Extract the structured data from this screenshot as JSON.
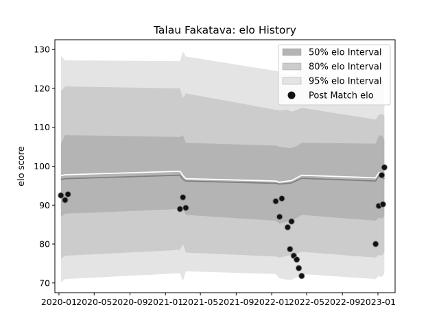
{
  "chart_data": {
    "type": "line",
    "title": "Talau Fakatava: elo History",
    "xlabel": "",
    "ylabel": "elo score",
    "xlim": [
      "2019-12-18",
      "2023-03-01"
    ],
    "ylim": [
      67.5,
      132.5
    ],
    "y_ticks": [
      70,
      80,
      90,
      100,
      110,
      120,
      130
    ],
    "x_ticks": [
      "2020-01",
      "2020-05",
      "2020-09",
      "2021-01",
      "2021-05",
      "2021-09",
      "2022-01",
      "2022-05",
      "2022-09",
      "2023-01"
    ],
    "grid": false,
    "legend_position": "top-right",
    "band_dates": [
      "2020-01-08",
      "2020-01-22",
      "2021-02-20",
      "2021-03-02",
      "2021-03-12",
      "2022-01-15",
      "2022-01-28",
      "2022-02-25",
      "2022-03-10",
      "2022-03-28",
      "2022-04-14",
      "2022-12-24",
      "2023-01-04",
      "2023-01-14",
      "2023-01-23"
    ],
    "median": [
      96.6,
      96.8,
      97.7,
      96.6,
      96.2,
      95.6,
      95.4,
      95.6,
      95.7,
      96.3,
      96.9,
      96.2,
      97.5,
      97.5,
      96.7
    ],
    "mean": [
      97.6,
      97.8,
      98.7,
      97.6,
      96.8,
      96.2,
      95.9,
      96.2,
      96.3,
      97.0,
      97.7,
      97.0,
      98.3,
      98.4,
      97.5
    ],
    "series": [
      {
        "name": "95% elo Interval",
        "color": "#e4e4e4",
        "upper": [
          128.3,
          127.2,
          127.0,
          129.5,
          128.2,
          124.5,
          124.2,
          123.5,
          123.2,
          124.0,
          125.0,
          120.5,
          121.5,
          122.0,
          121.5
        ],
        "lower": [
          70.2,
          71.0,
          72.5,
          70.5,
          73.0,
          72.3,
          71.2,
          70.8,
          70.8,
          71.5,
          72.3,
          71.0,
          71.8,
          71.5,
          72.5
        ]
      },
      {
        "name": "80% elo Interval",
        "color": "#cccccc",
        "upper": [
          119.3,
          120.5,
          120.0,
          117.5,
          118.7,
          114.5,
          114.3,
          114.5,
          114.0,
          114.5,
          115.0,
          112.0,
          113.2,
          113.5,
          113.0
        ],
        "lower": [
          76.2,
          77.0,
          78.5,
          80.0,
          77.8,
          76.8,
          76.5,
          77.0,
          77.2,
          77.5,
          78.0,
          76.5,
          77.2,
          77.0,
          77.8
        ]
      },
      {
        "name": "50% elo Interval",
        "color": "#b4b4b4",
        "upper": [
          105.8,
          108.0,
          107.5,
          108.0,
          106.0,
          105.3,
          105.0,
          104.7,
          104.7,
          105.2,
          106.0,
          105.8,
          107.8,
          108.0,
          106.8
        ],
        "lower": [
          87.0,
          87.8,
          89.0,
          89.0,
          87.5,
          86.0,
          85.2,
          85.8,
          86.0,
          86.7,
          87.5,
          86.0,
          86.8,
          86.5,
          87.2
        ]
      }
    ],
    "points": {
      "name": "Post Match elo",
      "color": "#111111",
      "x": [
        "2020-01-08",
        "2020-01-22",
        "2020-02-01",
        "2021-02-20",
        "2021-03-02",
        "2021-03-12",
        "2022-01-15",
        "2022-01-28",
        "2022-02-05",
        "2022-02-25",
        "2022-03-05",
        "2022-03-10",
        "2022-03-18",
        "2022-03-28",
        "2022-04-04",
        "2022-04-14",
        "2022-12-24",
        "2023-01-04",
        "2023-01-14",
        "2023-01-18",
        "2023-01-23"
      ],
      "y": [
        92.5,
        91.3,
        92.8,
        89.0,
        92.0,
        89.3,
        91.0,
        87.0,
        91.7,
        84.3,
        78.7,
        85.8,
        77.0,
        76.0,
        73.8,
        71.8,
        80.0,
        89.8,
        97.7,
        90.2,
        99.7
      ]
    }
  }
}
